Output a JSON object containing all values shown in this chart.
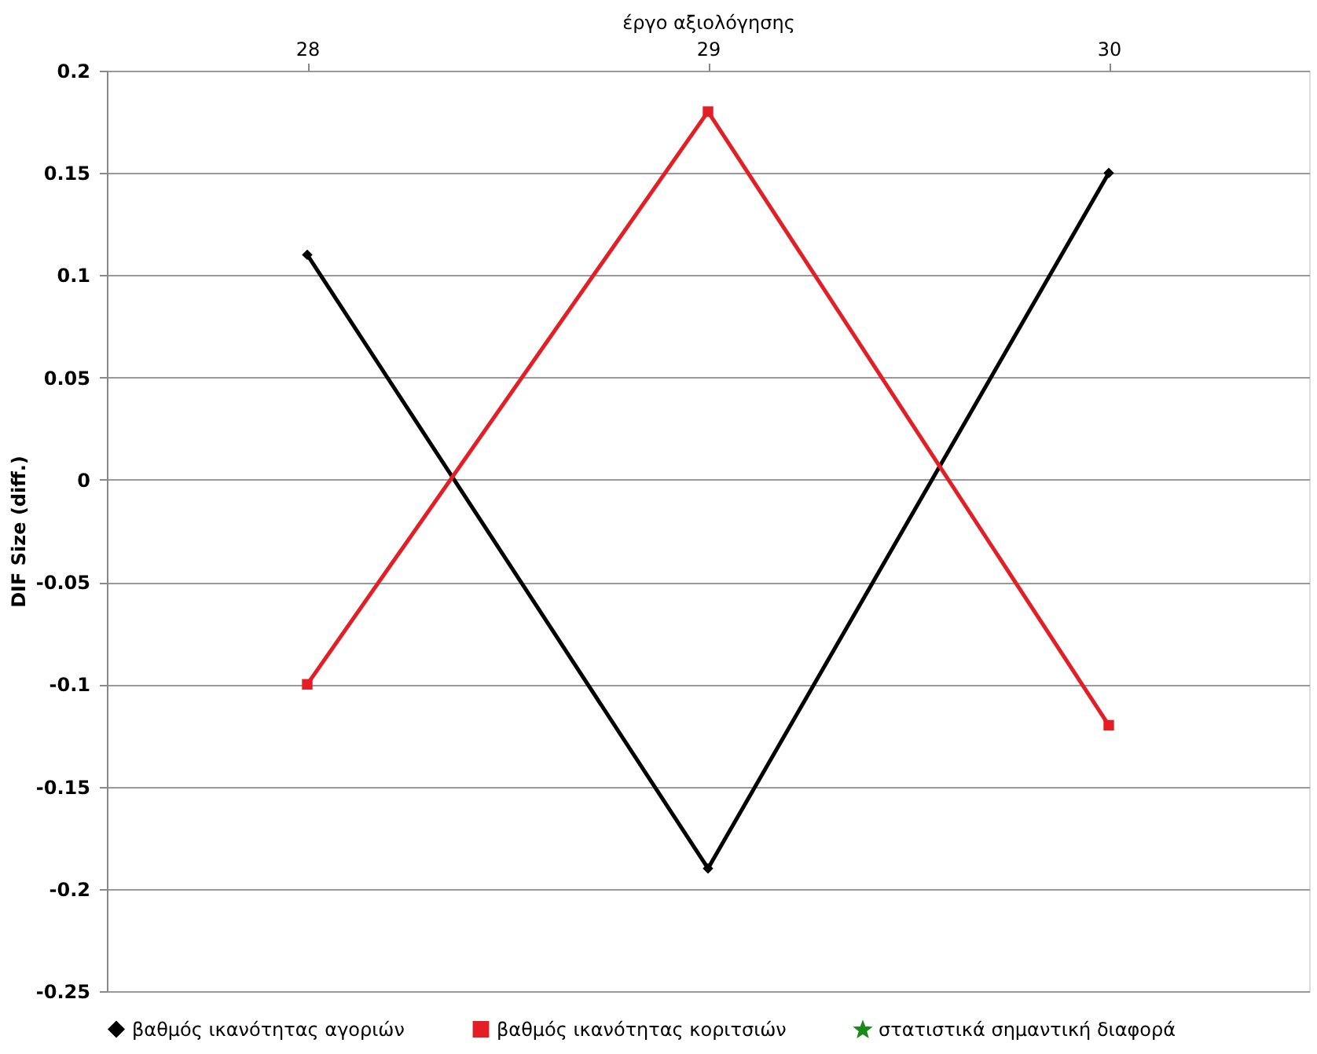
{
  "chart_data": {
    "type": "line",
    "xlabel": "έργο αξιολόγησης",
    "ylabel": "DIF Size (diff.)",
    "categories": [
      "28",
      "29",
      "30"
    ],
    "ylim": [
      -0.25,
      0.2
    ],
    "yticks": [
      -0.25,
      -0.2,
      -0.15,
      -0.1,
      -0.05,
      0,
      0.05,
      0.1,
      0.15,
      0.2
    ],
    "grid": "y",
    "legend": "bottom",
    "series": [
      {
        "name": "βαθμός ικανότητας αγοριών",
        "color": "#000000",
        "marker": "diamond",
        "values": [
          0.11,
          -0.19,
          0.15
        ]
      },
      {
        "name": "βαθμός ικανότητας κοριτσιών",
        "color": "#e31e24",
        "marker": "square",
        "values": [
          -0.1,
          0.18,
          -0.12
        ]
      },
      {
        "name": "στατιστικά σημαντική  διαφορά",
        "type": "scatter",
        "color": "#1a8a1a",
        "marker": "star",
        "values": [
          null,
          null,
          null
        ]
      }
    ]
  }
}
